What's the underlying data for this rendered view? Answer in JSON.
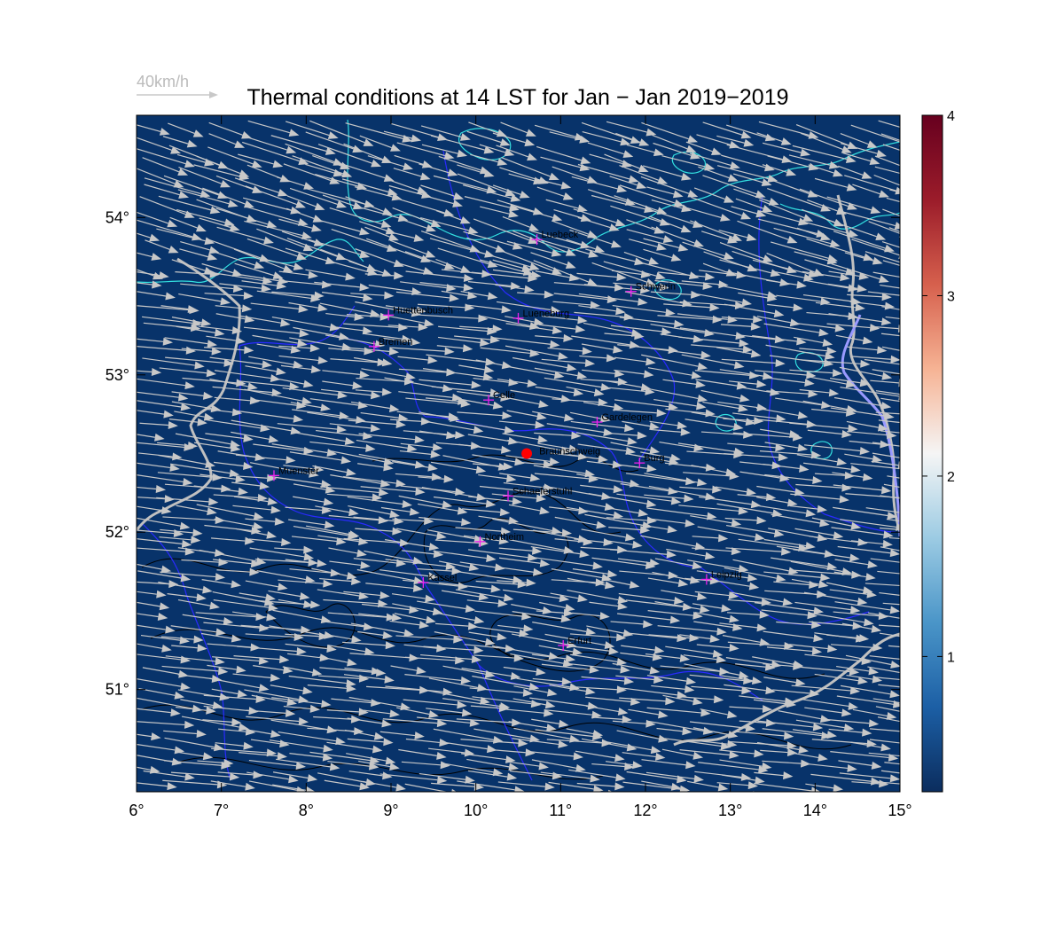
{
  "title": "Thermal conditions at 14 LST for Jan − Jan  2019−2019",
  "reference_vector": {
    "label": "40km/h",
    "speed_kmh": 40
  },
  "colors": {
    "ocean_fill": "#08336a",
    "arrow": "#c8c8c8",
    "coastline": "#33e0e0",
    "borders": "#2a2aff",
    "country_border": "#c0c0c0",
    "contour": "#000000",
    "city_marker": "#ee22ee",
    "origin_marker": "#ff0000"
  },
  "map": {
    "lon_range": [
      6,
      15
    ],
    "lat_range": [
      50.35,
      54.65
    ],
    "x_ticks": [
      {
        "value": 6,
        "label": "6°"
      },
      {
        "value": 7,
        "label": "7°"
      },
      {
        "value": 8,
        "label": "8°"
      },
      {
        "value": 9,
        "label": "9°"
      },
      {
        "value": 10,
        "label": "10°"
      },
      {
        "value": 11,
        "label": "11°"
      },
      {
        "value": 12,
        "label": "12°"
      },
      {
        "value": 13,
        "label": "13°"
      },
      {
        "value": 14,
        "label": "14°"
      },
      {
        "value": 15,
        "label": "15°"
      }
    ],
    "y_ticks": [
      {
        "value": 51,
        "label": "51°"
      },
      {
        "value": 52,
        "label": "52°"
      },
      {
        "value": 53,
        "label": "53°"
      },
      {
        "value": 54,
        "label": "54°"
      }
    ]
  },
  "colorbar": {
    "range": [
      0.25,
      4
    ],
    "ticks": [
      {
        "value": 1,
        "label": "1"
      },
      {
        "value": 2,
        "label": "2"
      },
      {
        "value": 3,
        "label": "3"
      },
      {
        "value": 4,
        "label": "4"
      }
    ],
    "stops": [
      "#0b2d5e",
      "#1c5fa5",
      "#4a95c8",
      "#9ccbe3",
      "#f5f5f5",
      "#f6b394",
      "#d6604d",
      "#9b1c2a",
      "#67001f"
    ]
  },
  "origin": {
    "name": "Braunschweig",
    "lon": 10.6,
    "lat": 52.5
  },
  "cities": [
    {
      "name": "Luebeck",
      "lon": 10.72,
      "lat": 53.86
    },
    {
      "name": "Schwerin",
      "lon": 11.83,
      "lat": 53.53
    },
    {
      "name": "Huettenbusch",
      "lon": 8.97,
      "lat": 53.38
    },
    {
      "name": "Lueneburg",
      "lon": 10.5,
      "lat": 53.36
    },
    {
      "name": "Bremen",
      "lon": 8.8,
      "lat": 53.18
    },
    {
      "name": "Celle",
      "lon": 10.15,
      "lat": 52.84
    },
    {
      "name": "Gardelegen",
      "lon": 11.43,
      "lat": 52.7
    },
    {
      "name": "Burg",
      "lon": 11.93,
      "lat": 52.44
    },
    {
      "name": "Muenster",
      "lon": 7.62,
      "lat": 52.36
    },
    {
      "name": "Schaeferstuhl",
      "lon": 10.38,
      "lat": 52.23
    },
    {
      "name": "Northeim",
      "lon": 10.05,
      "lat": 51.94
    },
    {
      "name": "Kassel",
      "lon": 9.38,
      "lat": 51.68
    },
    {
      "name": "Leipzig",
      "lon": 12.72,
      "lat": 51.7
    },
    {
      "name": "Erfurt",
      "lon": 11.03,
      "lat": 51.28
    }
  ]
}
